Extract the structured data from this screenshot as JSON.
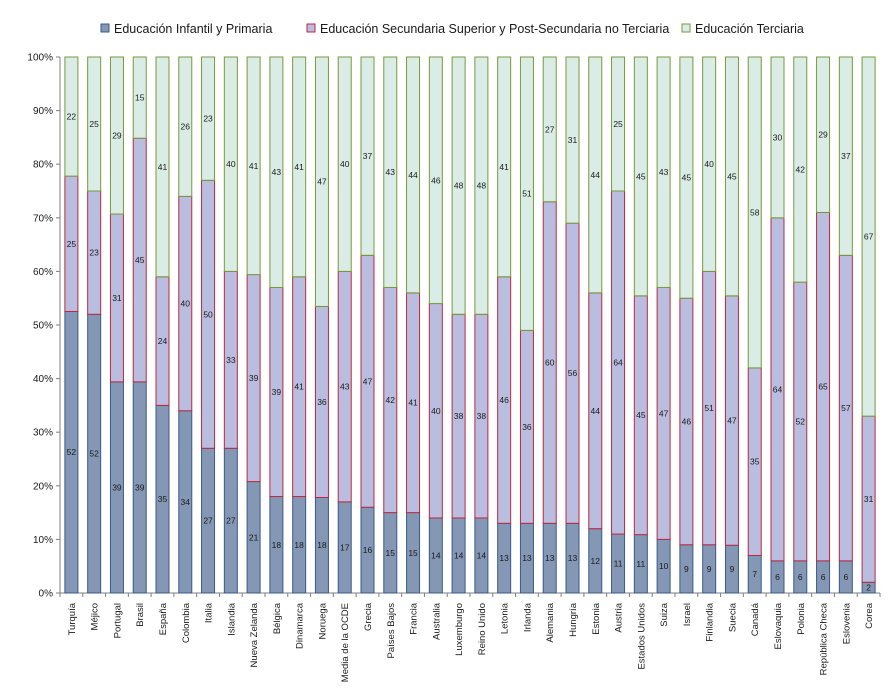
{
  "chart_data": {
    "type": "bar",
    "stacked": true,
    "percent": true,
    "title": "",
    "xlabel": "",
    "ylabel": "",
    "ylim": [
      0,
      100
    ],
    "y_ticks": [
      "0%",
      "10%",
      "20%",
      "30%",
      "40%",
      "50%",
      "60%",
      "70%",
      "80%",
      "90%",
      "100%"
    ],
    "grid": false,
    "legend_position": "top",
    "categories": [
      "Turquía",
      "Méjico",
      "Portugal",
      "Brasil",
      "España",
      "Colombia",
      "Italia",
      "Islandia",
      "Nueva Zelanda",
      "Bélgica",
      "Dinamarca",
      "Noruega",
      "Media de la OCDE",
      "Grecia",
      "Países Bajos",
      "Francia",
      "Australia",
      "Luxemburgo",
      "Reino Unido",
      "Letonia",
      "Irlanda",
      "Alemania",
      "Hungría",
      "Estonia",
      "Austria",
      "Estados Unidos",
      "Suiza",
      "Israel",
      "Finlandia",
      "Suecia",
      "Canadá",
      "Eslovaquia",
      "Polonia",
      "República Checa",
      "Eslovenia",
      "Corea"
    ],
    "series": [
      {
        "name": "Educación Infantil y  Primaria",
        "color": "#8497b4",
        "edge": "#3a5a8c",
        "values": [
          52,
          52,
          39,
          39,
          35,
          34,
          27,
          27,
          21,
          18,
          18,
          18,
          17,
          16,
          15,
          15,
          14,
          14,
          14,
          13,
          13,
          13,
          13,
          12,
          11,
          11,
          10,
          9,
          9,
          9,
          7,
          6,
          6,
          6,
          6,
          2
        ]
      },
      {
        "name": "Educación Secundaria Superior y Post-Secundaria no Terciaria",
        "color": "#b9bde0",
        "edge": "#c0283c",
        "values": [
          25,
          23,
          31,
          45,
          24,
          40,
          50,
          33,
          39,
          39,
          41,
          36,
          43,
          47,
          42,
          41,
          40,
          38,
          38,
          46,
          36,
          60,
          56,
          44,
          64,
          45,
          47,
          46,
          51,
          47,
          35,
          64,
          52,
          65,
          57,
          31
        ]
      },
      {
        "name": "Educación Terciaria",
        "color": "#d9ece6",
        "edge": "#7a9a3c",
        "values": [
          22,
          25,
          29,
          15,
          41,
          26,
          23,
          40,
          41,
          43,
          41,
          47,
          40,
          37,
          43,
          44,
          46,
          48,
          48,
          41,
          51,
          27,
          31,
          44,
          25,
          45,
          43,
          45,
          40,
          45,
          58,
          30,
          42,
          29,
          37,
          67
        ]
      }
    ]
  }
}
